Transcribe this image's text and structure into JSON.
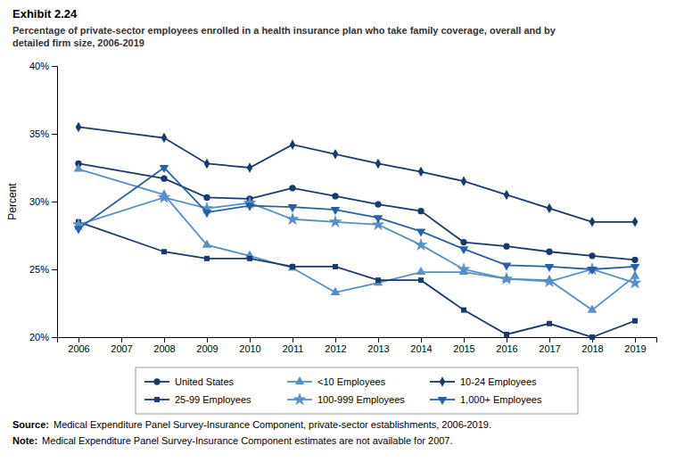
{
  "chart_data": {
    "type": "line",
    "title": "Exhibit 2.24",
    "subtitle": "Percentage of private-sector employees enrolled in a health insurance plan who take family coverage, overall and by\ndetailed firm size, 2006-2019",
    "ylabel": "Percent",
    "x": [
      2006,
      2008,
      2009,
      2010,
      2011,
      2012,
      2013,
      2014,
      2015,
      2016,
      2017,
      2018,
      2019
    ],
    "xlim": [
      2005.5,
      2019.5
    ],
    "xticks": [
      2006,
      2007,
      2008,
      2009,
      2010,
      2011,
      2012,
      2013,
      2014,
      2015,
      2016,
      2017,
      2018,
      2019
    ],
    "ylim": [
      20,
      40
    ],
    "yticks": [
      {
        "value": 20,
        "label": "20%"
      },
      {
        "value": 25,
        "label": "25%"
      },
      {
        "value": 30,
        "label": "30%"
      },
      {
        "value": 35,
        "label": "35%"
      },
      {
        "value": 40,
        "label": "40%"
      }
    ],
    "grid": false,
    "legend": "bottom",
    "series": [
      {
        "name": "United States",
        "color": "#1a3a6b",
        "marker": "circle",
        "values": [
          32.8,
          31.7,
          30.3,
          30.2,
          31.0,
          30.4,
          29.8,
          29.3,
          27.0,
          26.7,
          26.3,
          26.0,
          25.7
        ]
      },
      {
        "name": "<10 Employees",
        "color": "#5590c8",
        "marker": "triangle-up",
        "values": [
          32.4,
          30.5,
          26.8,
          26.0,
          25.1,
          23.3,
          24.0,
          24.8,
          24.8,
          24.3,
          24.2,
          22.0,
          24.5
        ]
      },
      {
        "name": "10-24 Employees",
        "color": "#1a3a6b",
        "marker": "diamond",
        "values": [
          35.5,
          34.7,
          32.8,
          32.5,
          34.2,
          33.5,
          32.8,
          32.2,
          31.5,
          30.5,
          29.5,
          28.5,
          28.5
        ]
      },
      {
        "name": "25-99 Employees",
        "color": "#1a3a6b",
        "marker": "square",
        "values": [
          28.5,
          26.3,
          25.8,
          25.8,
          25.2,
          25.2,
          24.2,
          24.2,
          22.0,
          20.2,
          21.0,
          20.0,
          21.2
        ]
      },
      {
        "name": "100-999 Employees",
        "color": "#5590c8",
        "marker": "star",
        "values": [
          28.3,
          30.3,
          29.5,
          29.9,
          28.7,
          28.5,
          28.3,
          26.8,
          25.0,
          24.3,
          24.1,
          25.0,
          24.0
        ]
      },
      {
        "name": "1,000+ Employees",
        "color": "#2860a8",
        "marker": "triangle-down",
        "values": [
          28.0,
          32.5,
          29.2,
          29.7,
          29.6,
          29.4,
          28.8,
          27.8,
          26.5,
          25.3,
          25.2,
          25.0,
          25.2
        ]
      }
    ],
    "annotations": [
      "Source:",
      "Medical Expenditure Panel Survey-Insurance Component, private-sector establishments, 2006-2019.",
      "Note:",
      "Medical Expenditure Panel Survey-Insurance Component estimates are not available for 2007."
    ]
  }
}
